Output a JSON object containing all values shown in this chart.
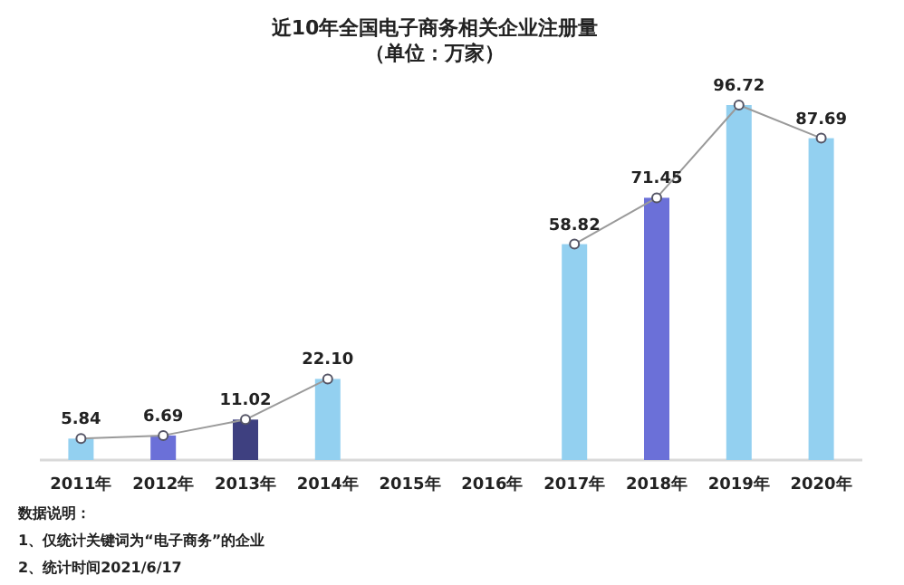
{
  "chart_data": {
    "type": "bar",
    "title": "近10年全国电子商务相关企业注册量",
    "subtitle": "（单位：万家）",
    "categories": [
      "2011年",
      "2012年",
      "2013年",
      "2014年",
      "2015年",
      "2016年",
      "2017年",
      "2018年",
      "2019年",
      "2020年"
    ],
    "series": [
      {
        "colors": [
          "#93d0f0",
          "#6b70d8",
          "#3e4080",
          "#93d0f0",
          null,
          null,
          "#93d0f0",
          "#6b70d8",
          "#93d0f0",
          "#93d0f0"
        ],
        "values": [
          5.84,
          6.69,
          11.02,
          22.1,
          null,
          null,
          58.82,
          71.45,
          96.72,
          87.69
        ]
      },
      {
        "type": "line",
        "color": "#9a9a9a",
        "values": [
          5.84,
          6.69,
          11.02,
          22.1,
          null,
          null,
          58.82,
          71.45,
          96.72,
          87.69
        ],
        "value_labels": [
          "5.84",
          "6.69",
          "11.02",
          "22.10",
          null,
          null,
          "58.82",
          "71.45",
          "96.72",
          "87.69"
        ]
      }
    ],
    "marker": "circle",
    "annotations": [
      "数据说明：",
      "1、仅统计关键词为“电子商务”的企业",
      "2、统计时间2021/6/17"
    ]
  }
}
